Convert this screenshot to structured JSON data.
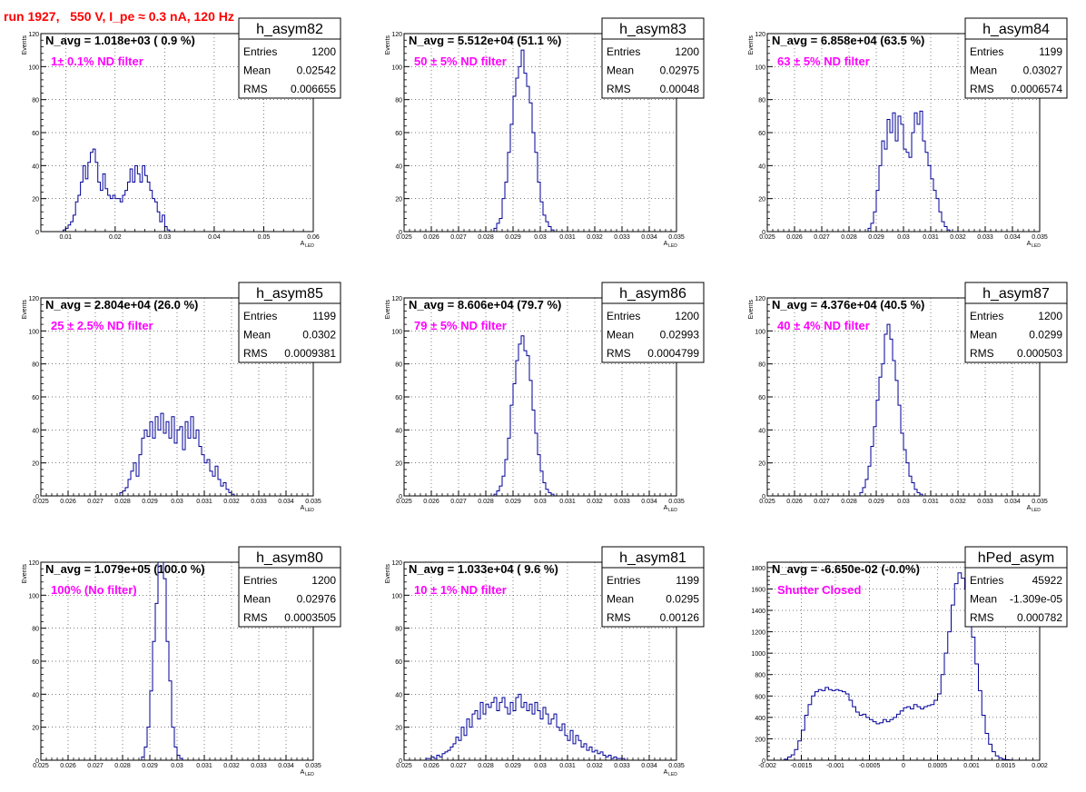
{
  "header": "run 1927,   550 V, I_pe ≈ 0.3 nA, 120 Hz",
  "chart_data": [
    {
      "type": "histogram",
      "name": "h_asym82",
      "navg": "N_avg = 1.018e+03 ( 0.9 %)",
      "note": "1± 0.1% ND filter",
      "stats": {
        "Entries": "1200",
        "Mean": "0.02542",
        "RMS": "0.006655"
      },
      "xlim": [
        0.005,
        0.06
      ],
      "ylim": [
        0,
        120
      ],
      "xticks": [
        0.01,
        0.02,
        0.03,
        0.04,
        0.05,
        0.06
      ],
      "yticks": [
        0,
        20,
        40,
        60,
        80,
        100,
        120
      ],
      "xtick_labels": [
        "0.01",
        "0.02",
        "0.03",
        "0.04",
        "0.05",
        "0.06"
      ],
      "ytick_labels": [
        "0",
        "20",
        "40",
        "60",
        "80",
        "100",
        "120"
      ],
      "ylabel": "Events",
      "xlabel": "A",
      "xlabel_sub": "LED",
      "bins": {
        "start": 0.0095,
        "width": 0.0005,
        "counts": [
          1,
          2,
          4,
          6,
          10,
          18,
          22,
          30,
          40,
          32,
          42,
          48,
          50,
          42,
          30,
          25,
          35,
          26,
          22,
          20,
          22,
          20,
          20,
          18,
          22,
          25,
          30,
          38,
          30,
          40,
          35,
          30,
          40,
          34,
          30,
          25,
          20,
          18,
          12,
          6,
          10,
          3,
          1
        ]
      }
    },
    {
      "type": "histogram",
      "name": "h_asym83",
      "navg": "N_avg = 5.512e+04 (51.1 %)",
      "note": "50 ± 5% ND filter",
      "stats": {
        "Entries": "1200",
        "Mean": "0.02975",
        "RMS": "0.00048"
      },
      "xlim": [
        0.025,
        0.035
      ],
      "ylim": [
        0,
        120
      ],
      "xticks": [
        0.025,
        0.026,
        0.027,
        0.028,
        0.029,
        0.03,
        0.031,
        0.032,
        0.033,
        0.034,
        0.035
      ],
      "yticks": [
        0,
        20,
        40,
        60,
        80,
        100,
        120
      ],
      "xtick_labels": [
        "0.025",
        "0.026",
        "0.027",
        "0.028",
        "0.029",
        "0.03",
        "0.031",
        "0.032",
        "0.033",
        "0.034",
        "0.035"
      ],
      "ytick_labels": [
        "0",
        "20",
        "40",
        "60",
        "80",
        "100",
        "120"
      ],
      "ylabel": "Events",
      "xlabel": "A",
      "xlabel_sub": "LED",
      "bins": {
        "start": 0.0283,
        "width": 0.0001,
        "counts": [
          2,
          5,
          8,
          20,
          30,
          48,
          65,
          82,
          93,
          100,
          110,
          96,
          88,
          78,
          60,
          48,
          30,
          18,
          10,
          6,
          3,
          1
        ]
      }
    },
    {
      "type": "histogram",
      "name": "h_asym84",
      "navg": "N_avg = 6.858e+04 (63.5 %)",
      "note": "63 ± 5% ND filter",
      "stats": {
        "Entries": "1199",
        "Mean": "0.03027",
        "RMS": "0.0006574"
      },
      "xlim": [
        0.025,
        0.035
      ],
      "ylim": [
        0,
        120
      ],
      "xticks": [
        0.025,
        0.026,
        0.027,
        0.028,
        0.029,
        0.03,
        0.031,
        0.032,
        0.033,
        0.034,
        0.035
      ],
      "yticks": [
        0,
        20,
        40,
        60,
        80,
        100,
        120
      ],
      "xtick_labels": [
        "0.025",
        "0.026",
        "0.027",
        "0.028",
        "0.029",
        "0.03",
        "0.031",
        "0.032",
        "0.033",
        "0.034",
        "0.035"
      ],
      "ytick_labels": [
        "0",
        "20",
        "40",
        "60",
        "80",
        "100",
        "120"
      ],
      "ylabel": "Events",
      "xlabel": "A",
      "xlabel_sub": "LED",
      "bins": {
        "start": 0.0287,
        "width": 0.0001,
        "counts": [
          2,
          5,
          12,
          25,
          40,
          55,
          50,
          68,
          60,
          72,
          55,
          70,
          65,
          50,
          48,
          45,
          60,
          72,
          65,
          73,
          55,
          48,
          40,
          32,
          25,
          20,
          12,
          6,
          3,
          1
        ]
      }
    },
    {
      "type": "histogram",
      "name": "h_asym85",
      "navg": "N_avg = 2.804e+04 (26.0 %)",
      "note": "25 ± 2.5% ND filter",
      "stats": {
        "Entries": "1199",
        "Mean": "0.0302",
        "RMS": "0.0009381"
      },
      "xlim": [
        0.025,
        0.035
      ],
      "ylim": [
        0,
        120
      ],
      "xticks": [
        0.025,
        0.026,
        0.027,
        0.028,
        0.029,
        0.03,
        0.031,
        0.032,
        0.033,
        0.034,
        0.035
      ],
      "yticks": [
        0,
        20,
        40,
        60,
        80,
        100,
        120
      ],
      "xtick_labels": [
        "0.025",
        "0.026",
        "0.027",
        "0.028",
        "0.029",
        "0.03",
        "0.031",
        "0.032",
        "0.033",
        "0.034",
        "0.035"
      ],
      "ytick_labels": [
        "0",
        "20",
        "40",
        "60",
        "80",
        "100",
        "120"
      ],
      "ylabel": "Events",
      "xlabel": "A",
      "xlabel_sub": "LED",
      "bins": {
        "start": 0.0279,
        "width": 0.0001,
        "counts": [
          2,
          3,
          5,
          10,
          15,
          20,
          12,
          25,
          35,
          40,
          36,
          45,
          35,
          48,
          40,
          50,
          38,
          45,
          35,
          48,
          32,
          40,
          42,
          28,
          45,
          35,
          48,
          35,
          40,
          30,
          25,
          20,
          22,
          15,
          12,
          18,
          10,
          6,
          8,
          4,
          2,
          1
        ]
      }
    },
    {
      "type": "histogram",
      "name": "h_asym86",
      "navg": "N_avg = 8.606e+04 (79.7 %)",
      "note": "79 ± 5% ND filter",
      "stats": {
        "Entries": "1200",
        "Mean": "0.02993",
        "RMS": "0.0004799"
      },
      "xlim": [
        0.025,
        0.035
      ],
      "ylim": [
        0,
        120
      ],
      "xticks": [
        0.025,
        0.026,
        0.027,
        0.028,
        0.029,
        0.03,
        0.031,
        0.032,
        0.033,
        0.034,
        0.035
      ],
      "yticks": [
        0,
        20,
        40,
        60,
        80,
        100,
        120
      ],
      "xtick_labels": [
        "0.025",
        "0.026",
        "0.027",
        "0.028",
        "0.029",
        "0.03",
        "0.031",
        "0.032",
        "0.033",
        "0.034",
        "0.035"
      ],
      "ytick_labels": [
        "0",
        "20",
        "40",
        "60",
        "80",
        "100",
        "120"
      ],
      "ylabel": "Events",
      "xlabel": "A",
      "xlabel_sub": "LED",
      "bins": {
        "start": 0.0283,
        "width": 0.0001,
        "counts": [
          1,
          3,
          6,
          12,
          22,
          35,
          55,
          68,
          82,
          92,
          97,
          88,
          85,
          70,
          52,
          38,
          25,
          15,
          8,
          4,
          2,
          1
        ]
      }
    },
    {
      "type": "histogram",
      "name": "h_asym87",
      "navg": "N_avg = 4.376e+04 (40.5 %)",
      "note": "40 ± 4% ND filter",
      "stats": {
        "Entries": "1200",
        "Mean": "0.0299",
        "RMS": "0.000503"
      },
      "xlim": [
        0.025,
        0.035
      ],
      "ylim": [
        0,
        120
      ],
      "xticks": [
        0.025,
        0.026,
        0.027,
        0.028,
        0.029,
        0.03,
        0.031,
        0.032,
        0.033,
        0.034,
        0.035
      ],
      "yticks": [
        0,
        20,
        40,
        60,
        80,
        100,
        120
      ],
      "xtick_labels": [
        "0.025",
        "0.026",
        "0.027",
        "0.028",
        "0.029",
        "0.03",
        "0.031",
        "0.032",
        "0.033",
        "0.034",
        "0.035"
      ],
      "ytick_labels": [
        "0",
        "20",
        "40",
        "60",
        "80",
        "100",
        "120"
      ],
      "ylabel": "Events",
      "xlabel": "A",
      "xlabel_sub": "LED",
      "bins": {
        "start": 0.0284,
        "width": 0.0001,
        "counts": [
          2,
          5,
          10,
          18,
          30,
          42,
          58,
          72,
          80,
          98,
          104,
          95,
          82,
          70,
          55,
          38,
          28,
          20,
          12,
          8,
          4,
          2,
          1
        ]
      }
    },
    {
      "type": "histogram",
      "name": "h_asym80",
      "navg": "N_avg = 1.079e+05 (100.0 %)",
      "note": "100% (No filter)",
      "stats": {
        "Entries": "1200",
        "Mean": "0.02976",
        "RMS": "0.0003505"
      },
      "xlim": [
        0.025,
        0.035
      ],
      "ylim": [
        0,
        120
      ],
      "xticks": [
        0.025,
        0.026,
        0.027,
        0.028,
        0.029,
        0.03,
        0.031,
        0.032,
        0.033,
        0.034,
        0.035
      ],
      "yticks": [
        0,
        20,
        40,
        60,
        80,
        100,
        120
      ],
      "xtick_labels": [
        "0.025",
        "0.026",
        "0.027",
        "0.028",
        "0.029",
        "0.03",
        "0.031",
        "0.032",
        "0.033",
        "0.034",
        "0.035"
      ],
      "ytick_labels": [
        "0",
        "20",
        "40",
        "60",
        "80",
        "100",
        "120"
      ],
      "ylabel": "Events",
      "xlabel": "A",
      "xlabel_sub": "LED",
      "bins": {
        "start": 0.0287,
        "width": 0.0001,
        "counts": [
          2,
          8,
          20,
          42,
          72,
          95,
          120,
          128,
          110,
          72,
          48,
          20,
          8,
          3,
          1
        ]
      }
    },
    {
      "type": "histogram",
      "name": "h_asym81",
      "navg": "N_avg = 1.033e+04 ( 9.6 %)",
      "note": "10 ± 1% ND filter",
      "stats": {
        "Entries": "1199",
        "Mean": "0.0295",
        "RMS": "0.00126"
      },
      "xlim": [
        0.025,
        0.035
      ],
      "ylim": [
        0,
        120
      ],
      "xticks": [
        0.025,
        0.026,
        0.027,
        0.028,
        0.029,
        0.03,
        0.031,
        0.032,
        0.033,
        0.034,
        0.035
      ],
      "yticks": [
        0,
        20,
        40,
        60,
        80,
        100,
        120
      ],
      "xtick_labels": [
        "0.025",
        "0.026",
        "0.027",
        "0.028",
        "0.029",
        "0.03",
        "0.031",
        "0.032",
        "0.033",
        "0.034",
        "0.035"
      ],
      "ytick_labels": [
        "0",
        "20",
        "40",
        "60",
        "80",
        "100",
        "120"
      ],
      "ylabel": "Events",
      "xlabel": "A",
      "xlabel_sub": "LED",
      "bins": {
        "start": 0.0258,
        "width": 0.0001,
        "counts": [
          1,
          1,
          2,
          1,
          3,
          2,
          4,
          5,
          6,
          8,
          10,
          14,
          12,
          20,
          15,
          25,
          20,
          28,
          30,
          25,
          35,
          28,
          34,
          32,
          35,
          38,
          30,
          35,
          38,
          32,
          28,
          35,
          30,
          38,
          40,
          32,
          35,
          30,
          34,
          28,
          35,
          30,
          25,
          32,
          28,
          22,
          25,
          28,
          20,
          18,
          22,
          15,
          12,
          18,
          10,
          15,
          12,
          8,
          10,
          6,
          8,
          5,
          6,
          4,
          5,
          3,
          2,
          3,
          1,
          2,
          1,
          1,
          1
        ]
      }
    },
    {
      "type": "histogram",
      "name": "hPed_asym",
      "navg": "N_avg = -6.650e-02 (-0.0%)",
      "note": "Shutter Closed",
      "stats": {
        "Entries": "45922",
        "Mean": "-1.309e-05",
        "RMS": "0.000782"
      },
      "xlim": [
        -0.002,
        0.002
      ],
      "ylim": [
        0,
        1850
      ],
      "xticks": [
        -0.002,
        -0.0015,
        -0.001,
        -0.0005,
        0,
        0.0005,
        0.001,
        0.0015,
        0.002
      ],
      "yticks": [
        0,
        200,
        400,
        600,
        800,
        1000,
        1200,
        1400,
        1600,
        1800
      ],
      "xtick_labels": [
        "-0.002",
        "-0.0015",
        "-0.001",
        "-0.0005",
        "0",
        "0.0005",
        "0.001",
        "0.0015",
        "0.002"
      ],
      "ytick_labels": [
        "0",
        "200",
        "400",
        "600",
        "800",
        "1000",
        "1200",
        "1400",
        "1600",
        "1800"
      ],
      "ylabel": "",
      "xlabel": "",
      "xlabel_sub": "",
      "bins": {
        "start": -0.00175,
        "width": 5e-05,
        "counts": [
          10,
          30,
          50,
          100,
          180,
          280,
          420,
          520,
          600,
          640,
          660,
          650,
          680,
          660,
          650,
          660,
          650,
          640,
          620,
          560,
          500,
          450,
          420,
          430,
          400,
          380,
          360,
          340,
          350,
          380,
          360,
          380,
          400,
          430,
          460,
          490,
          500,
          480,
          520,
          500,
          480,
          500,
          510,
          520,
          560,
          620,
          800,
          1000,
          1200,
          1450,
          1650,
          1750,
          1700,
          1600,
          1400,
          1150,
          900,
          650,
          420,
          250,
          150,
          80,
          40,
          20,
          10,
          5,
          2
        ]
      }
    }
  ]
}
